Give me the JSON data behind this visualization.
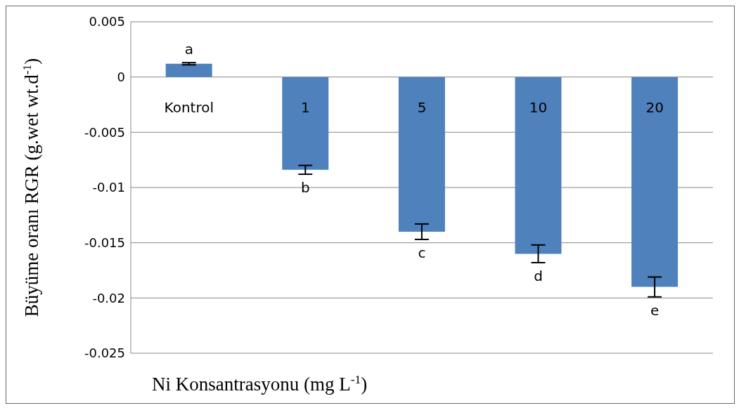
{
  "chart_data": {
    "type": "bar",
    "xlabel": "Ni Konsantrasyonu (mg L$^{-1}$)",
    "ylabel": "Büyüme oranı RGR (g.wet wt.d$^{-1}$)",
    "categories": [
      "Kontrol",
      "1",
      "5",
      "10",
      "20"
    ],
    "values": [
      0.0012,
      -0.0084,
      -0.014,
      -0.016,
      -0.019
    ],
    "errors": [
      0.0001,
      0.0004,
      0.0007,
      0.0008,
      0.0009
    ],
    "color": "#4f81bd",
    "ylim": [
      -0.025,
      0.005
    ],
    "yticks": [
      -0.025,
      -0.02,
      -0.015,
      -0.01,
      -0.005,
      0,
      0.005
    ],
    "grid": "y",
    "legend": false,
    "annotations": [
      "a",
      "b",
      "c",
      "d",
      "e"
    ]
  }
}
